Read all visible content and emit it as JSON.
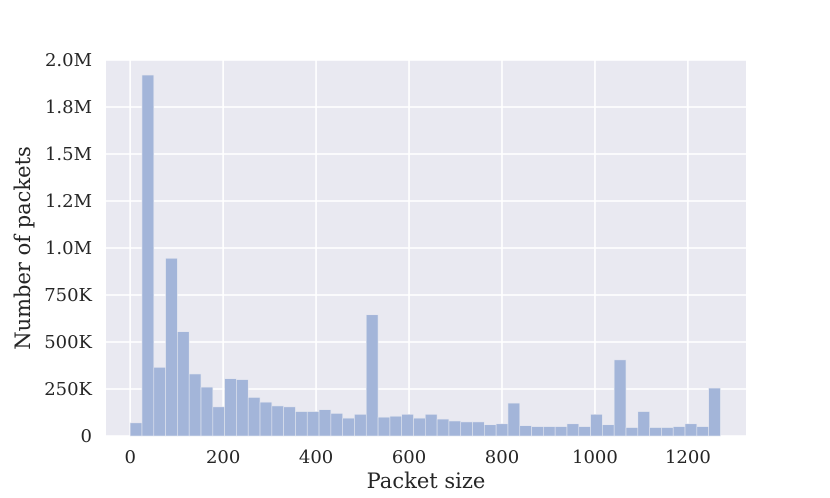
{
  "chart_data": {
    "type": "bar",
    "title": "",
    "xlabel": "Packet size",
    "ylabel": "Number of packets",
    "xlim": [
      -52,
      1325
    ],
    "ylim": [
      0,
      2000000
    ],
    "xticks": [
      0,
      200,
      400,
      600,
      800,
      1000,
      1200
    ],
    "xtick_labels": [
      "0",
      "200",
      "400",
      "600",
      "800",
      "1000",
      "1200"
    ],
    "yticks": [
      0,
      250000,
      500000,
      750000,
      1000000,
      1250000,
      1500000,
      1750000,
      2000000
    ],
    "ytick_labels": [
      "0",
      "250K",
      "500K",
      "750K",
      "1.0M",
      "1.2M",
      "1.5M",
      "1.8M",
      "2.0M"
    ],
    "grid": true,
    "bar_color": "#a3b5d9",
    "plot_background": "#e9e9f1",
    "bin_width": 25.4,
    "bin_start": 0,
    "values": [
      70000,
      1920000,
      365000,
      945000,
      555000,
      330000,
      260000,
      155000,
      305000,
      300000,
      205000,
      180000,
      160000,
      155000,
      130000,
      130000,
      140000,
      120000,
      95000,
      115000,
      645000,
      100000,
      105000,
      115000,
      95000,
      115000,
      90000,
      80000,
      75000,
      75000,
      60000,
      65000,
      175000,
      55000,
      50000,
      50000,
      50000,
      65000,
      50000,
      115000,
      60000,
      405000,
      45000,
      130000,
      45000,
      45000,
      50000,
      65000,
      50000,
      255000
    ]
  }
}
